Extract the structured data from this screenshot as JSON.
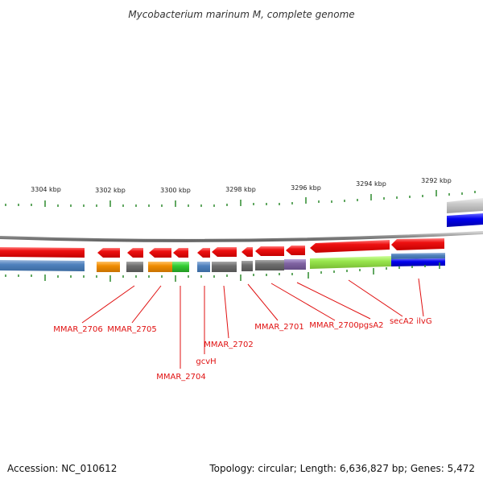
{
  "title": "Mycobacterium marinum M, complete genome",
  "footer": {
    "accession": "Accession: NC_010612",
    "summary": "Topology: circular; Length: 6,636,827 bp; Genes: 5,472"
  },
  "ruler": {
    "labels": [
      "3304 kbp",
      "3302 kbp",
      "3300 kbp",
      "3298 kbp",
      "3296 kbp",
      "3294 kbp",
      "3292 kbp"
    ]
  },
  "genes": [
    {
      "name": "MMAR_2706",
      "feature_color": "#4f81bd"
    },
    {
      "name": "MMAR_2705",
      "feature_color": "#6e6e6e"
    },
    {
      "name": "MMAR_2704",
      "feature_color": "#33cc33"
    },
    {
      "name": "gcvH",
      "feature_color": "#4f81bd"
    },
    {
      "name": "MMAR_2702",
      "feature_color": "#6e6e6e"
    },
    {
      "name": "MMAR_2701",
      "feature_color": "#6e6e6e"
    },
    {
      "name": "MMAR_2700",
      "feature_color": "#8064a2"
    },
    {
      "name": "pgsA2",
      "feature_color": "#99e64d"
    },
    {
      "name": "secA2",
      "feature_color": "#99e64d"
    },
    {
      "name": "ilvG",
      "feature_color": "#4f81bd"
    }
  ],
  "colors": {
    "cds": "#ee1111",
    "backbone": "#888888",
    "tick": "#2e8b2e",
    "label": "#e01010",
    "orange": "#f08c00",
    "blue": "#0000ee",
    "lightgray": "#c8c8c8"
  }
}
